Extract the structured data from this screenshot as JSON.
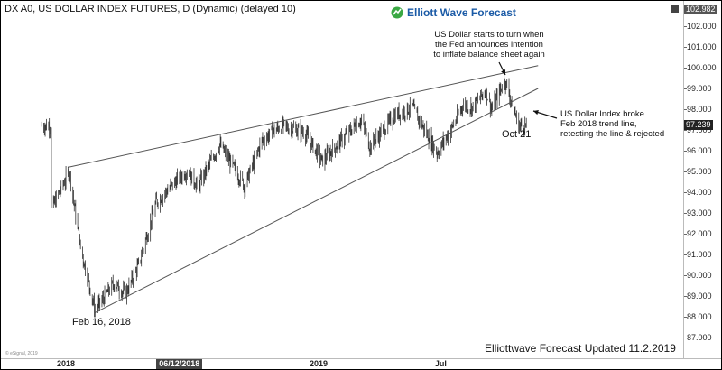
{
  "header": {
    "title": "DX A0, US DOLLAR INDEX FUTURES, D (Dynamic) (delayed 10)",
    "logo_text": "Elliott Wave Forecast",
    "logo_icon": "ewf-logo-icon",
    "maximize_icon": "maximize-icon"
  },
  "annotations": {
    "fed_lines": [
      "US Dollar starts to turn when",
      "the Fed announces intention",
      "to inflate balance sheet again"
    ],
    "broke_lines": [
      "US Dollar Index broke",
      "Feb 2018 trend line,",
      "retesting the line & rejected"
    ],
    "oct_label": "Oct 21",
    "feb_label": "Feb 16, 2018",
    "footer": "Elliottwave Forecast Updated 11.2.2019",
    "credit": "© eSignal, 2019"
  },
  "price_boxes": {
    "top": "102.982",
    "current": "97.239"
  },
  "colors": {
    "candles": "#333333",
    "trendline": "#555555",
    "brand_blue": "#1a5aa6",
    "brand_green": "#3aa843"
  },
  "chart_data": {
    "type": "candlestick",
    "title": "DX A0, US DOLLAR INDEX FUTURES, D (Dynamic) (delayed 10)",
    "y_ticks": [
      "102.000",
      "101.000",
      "100.000",
      "99.000",
      "98.000",
      "97.000",
      "96.000",
      "95.000",
      "94.000",
      "93.000",
      "92.000",
      "91.000",
      "90.000",
      "89.000",
      "88.000",
      "87.000"
    ],
    "ylim": [
      86.3,
      103.3
    ],
    "x_ticks": [
      "2018",
      "06/12/2018",
      "2019",
      "Jul"
    ],
    "x_tick_boxed": [
      false,
      true,
      false,
      false
    ],
    "series": [
      {
        "dates": [
          "2017-12",
          "2018-01-10",
          "2018-01-25",
          "2018-02-16",
          "2018-03",
          "2018-04-01",
          "2018-04-20",
          "2018-05-15",
          "2018-06-12",
          "2018-06-28",
          "2018-07-15",
          "2018-08-15",
          "2018-09-20",
          "2018-10-15",
          "2018-11-12",
          "2018-12-15",
          "2019-01-10",
          "2019-02-15",
          "2019-03-07",
          "2019-03-20",
          "2019-04-25",
          "2019-05-20",
          "2019-06-25",
          "2019-07-15",
          "2019-08-01",
          "2019-08-15",
          "2019-09-03",
          "2019-09-12",
          "2019-10-01",
          "2019-10-21",
          "2019-11-01"
        ],
        "values": [
          93.2,
          95.0,
          91.5,
          88.3,
          89.6,
          89.1,
          90.5,
          93.5,
          94.5,
          95.0,
          94.3,
          96.3,
          94.3,
          96.5,
          97.2,
          96.9,
          95.5,
          96.8,
          97.5,
          96.2,
          97.7,
          98.1,
          95.9,
          97.0,
          98.2,
          98.1,
          98.9,
          98.0,
          99.4,
          97.2,
          97.2
        ]
      }
    ],
    "trendlines": [
      {
        "name": "upper",
        "from": [
          "2018-01-08",
          95.2
        ],
        "to": [
          "2019-11-18",
          100.1
        ]
      },
      {
        "name": "lower",
        "from": [
          "2018-02-16",
          88.2
        ],
        "to": [
          "2019-11-18",
          99.0
        ]
      }
    ]
  }
}
